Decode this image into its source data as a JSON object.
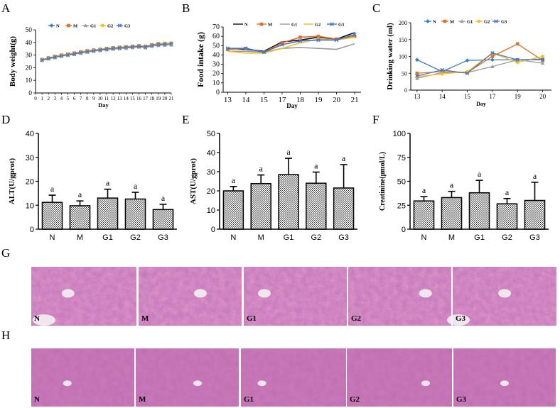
{
  "panel_letters": [
    "A",
    "B",
    "C",
    "D",
    "E",
    "F",
    "G",
    "H"
  ],
  "colors": {
    "N": "#3a7fc1",
    "M": "#e0702d",
    "G1": "#9b9b9b",
    "G2": "#f1bf1c",
    "G3": "#4a77be",
    "B_N": "#111111",
    "B_G3": "#4472c4",
    "tissue_main": "#d07eb4",
    "tissue_light": "#e6a2cd",
    "tissue_dark": "#a9559b",
    "vessel": "#f4f1f2"
  },
  "chart_data": [
    {
      "id": "A",
      "type": "line",
      "xlabel": "Day",
      "ylabel": "Body weight(g)",
      "xlim": [
        0,
        21
      ],
      "ylim": [
        0,
        50
      ],
      "xticks": [
        0,
        1,
        2,
        3,
        4,
        5,
        6,
        7,
        8,
        9,
        10,
        11,
        12,
        13,
        14,
        15,
        16,
        17,
        18,
        19,
        20,
        21
      ],
      "yticks": [
        0,
        10,
        20,
        30,
        40,
        50
      ],
      "x": [
        1,
        2,
        3,
        4,
        5,
        6,
        7,
        8,
        9,
        10,
        11,
        12,
        13,
        14,
        15,
        16,
        17,
        18,
        19,
        20,
        21
      ],
      "legend": [
        "N",
        "M",
        "G1",
        "G2",
        "G3"
      ],
      "series": [
        {
          "name": "N",
          "marker": "diamond",
          "values": [
            26,
            27.2,
            28.5,
            29.5,
            30.2,
            31,
            32,
            32.8,
            33.4,
            34,
            34.6,
            35.2,
            35.6,
            36,
            36.4,
            36.8,
            36.2,
            37.6,
            38.4,
            38.6,
            38.8
          ]
        },
        {
          "name": "M",
          "marker": "square",
          "values": [
            26.5,
            27.8,
            29,
            30,
            30.8,
            31.6,
            32.6,
            33.4,
            34,
            34.6,
            35.2,
            35.8,
            36.2,
            36.6,
            37,
            37.4,
            37,
            38.2,
            39,
            39.2,
            39.4
          ]
        },
        {
          "name": "G1",
          "marker": "triangle",
          "values": [
            25.8,
            27,
            28,
            29,
            29.8,
            30.6,
            31.5,
            32.3,
            33,
            33.6,
            34.2,
            34.7,
            35.1,
            35.5,
            35.9,
            36.3,
            35.8,
            37,
            37.6,
            37.9,
            38
          ]
        },
        {
          "name": "G2",
          "marker": "circle",
          "values": [
            26.2,
            27.4,
            28.6,
            29.6,
            30.4,
            31.2,
            32.2,
            33,
            33.6,
            34.2,
            34.8,
            35.4,
            35.8,
            36.2,
            36.6,
            37,
            36.5,
            37.8,
            38.5,
            38.8,
            39
          ]
        },
        {
          "name": "G3",
          "marker": "x",
          "values": [
            26,
            27.3,
            28.4,
            29.4,
            30.2,
            31,
            32,
            32.8,
            33.5,
            34.1,
            34.7,
            35.3,
            35.7,
            36.1,
            36.5,
            36.9,
            36.4,
            37.7,
            38.3,
            38.6,
            38.9
          ]
        }
      ]
    },
    {
      "id": "B",
      "type": "line",
      "xlabel": "Day",
      "ylabel": "Food intake (g)",
      "ylim": [
        0,
        70
      ],
      "yticks": [
        0,
        10,
        20,
        30,
        40,
        50,
        60,
        70
      ],
      "categories": [
        "13",
        "14",
        "15",
        "17",
        "18",
        "19",
        "20",
        "21"
      ],
      "legend": [
        "N",
        "M",
        "G1",
        "G2",
        "G3"
      ],
      "series": [
        {
          "name": "N",
          "marker": "none",
          "values": [
            47,
            46,
            44,
            54,
            56,
            59,
            57,
            64
          ]
        },
        {
          "name": "M",
          "marker": "square",
          "values": [
            46,
            47,
            43,
            53,
            59,
            60,
            57,
            60
          ]
        },
        {
          "name": "G1",
          "marker": "none",
          "values": [
            44,
            44,
            43,
            47,
            48,
            47,
            46,
            52
          ]
        },
        {
          "name": "G2",
          "marker": "none",
          "values": [
            44,
            42,
            42,
            47,
            53,
            57,
            56,
            59
          ]
        },
        {
          "name": "G3",
          "marker": "x",
          "values": [
            47,
            47,
            43,
            51,
            55,
            56,
            56,
            62
          ]
        }
      ]
    },
    {
      "id": "C",
      "type": "line",
      "xlabel": "Day",
      "ylabel": "Drinking water (ml)",
      "ylim": [
        0,
        200
      ],
      "yticks": [
        0,
        50,
        100,
        150,
        200
      ],
      "categories": [
        "13",
        "14",
        "15",
        "17",
        "19",
        "20"
      ],
      "legend": [
        "N",
        "M",
        "G1",
        "G2",
        "G3"
      ],
      "series": [
        {
          "name": "N",
          "marker": "diamond",
          "values": [
            90,
            55,
            88,
            90,
            90,
            92
          ]
        },
        {
          "name": "M",
          "marker": "square",
          "values": [
            50,
            55,
            52,
            100,
            137,
            88
          ]
        },
        {
          "name": "G1",
          "marker": "triangle",
          "values": [
            35,
            52,
            52,
            70,
            90,
            80
          ]
        },
        {
          "name": "G2",
          "marker": "circle",
          "values": [
            40,
            48,
            55,
            110,
            82,
            100
          ]
        },
        {
          "name": "G3",
          "marker": "x",
          "values": [
            42,
            60,
            50,
            110,
            90,
            90
          ]
        }
      ]
    },
    {
      "id": "D",
      "type": "bar",
      "ylabel": "ALT(U/gprot)",
      "ylim": [
        0,
        40
      ],
      "yticks": [
        0,
        10,
        20,
        30,
        40
      ],
      "categories": [
        "N",
        "M",
        "G1",
        "G2",
        "G3"
      ],
      "values": [
        11.2,
        9.8,
        13,
        12.6,
        8.2
      ],
      "errors": [
        3,
        2,
        3.7,
        2.8,
        2.2
      ],
      "annotations": [
        "a",
        "a",
        "a",
        "a",
        "a"
      ]
    },
    {
      "id": "E",
      "type": "bar",
      "ylabel": "AST(U/gprot)",
      "ylim": [
        0,
        50
      ],
      "yticks": [
        0,
        10,
        20,
        30,
        40,
        50
      ],
      "categories": [
        "N",
        "M",
        "G1",
        "G2",
        "G3"
      ],
      "values": [
        20,
        23.8,
        28.5,
        24,
        21.5
      ],
      "errors": [
        2.3,
        4.5,
        8.5,
        5.8,
        12.2
      ],
      "annotations": [
        "a",
        "a",
        "a",
        "a",
        "a"
      ]
    },
    {
      "id": "F",
      "type": "bar",
      "ylabel": "Creatinine(μmol/L)",
      "ylim": [
        0,
        100
      ],
      "yticks": [
        0,
        25,
        50,
        75,
        100
      ],
      "categories": [
        "N",
        "M",
        "G1",
        "G2",
        "G3"
      ],
      "values": [
        29.5,
        33,
        38,
        26.5,
        30
      ],
      "errors": [
        4.5,
        6.5,
        13,
        5.5,
        19
      ],
      "annotations": [
        "a",
        "a",
        "a",
        "a",
        "a"
      ]
    }
  ],
  "histology": {
    "G_labels": [
      "N",
      "M",
      "G1",
      "G2",
      "G3"
    ],
    "H_labels": [
      "N",
      "M",
      "G1",
      "G2",
      "G3"
    ]
  }
}
